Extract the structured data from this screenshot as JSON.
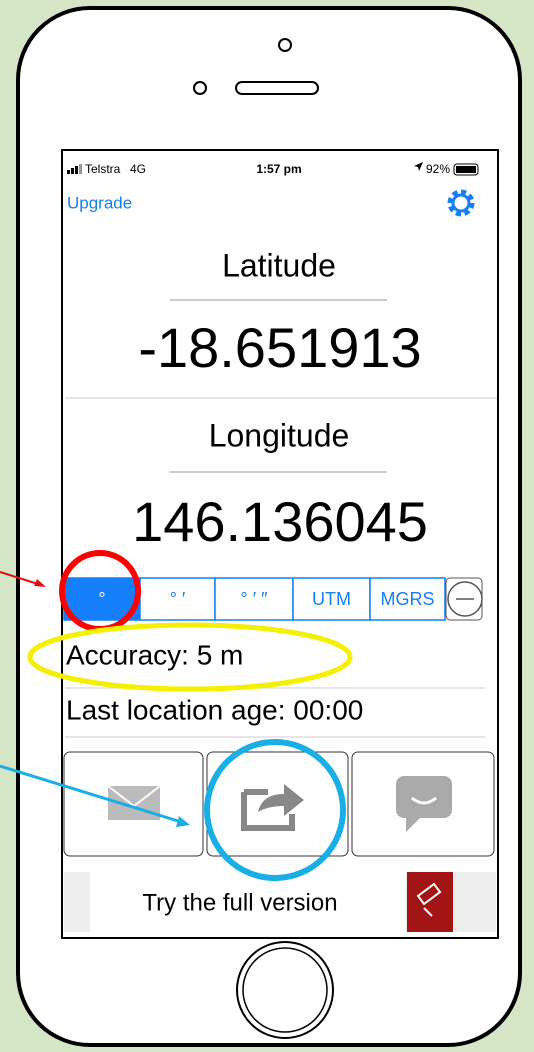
{
  "status_bar": {
    "carrier": "Telstra",
    "network": "4G",
    "time": "1:57 pm",
    "battery": "92%"
  },
  "nav": {
    "upgrade": "Upgrade"
  },
  "latitude": {
    "label": "Latitude",
    "value": "-18.651913"
  },
  "longitude": {
    "label": "Longitude",
    "value": "146.136045"
  },
  "formats": [
    "°",
    "° ′",
    "° ′ ″",
    "UTM",
    "MGRS"
  ],
  "accuracy": "Accuracy: 5 m",
  "location_age": "Last location age: 00:00",
  "banner": "Try the full version"
}
